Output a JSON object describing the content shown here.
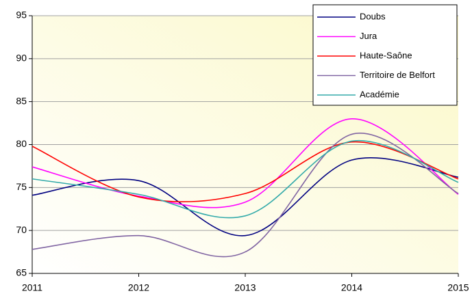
{
  "chart_data": {
    "type": "line",
    "x": [
      2011,
      2012,
      2013,
      2014,
      2015
    ],
    "xlim": [
      2011,
      2015
    ],
    "xticks": [
      2011,
      2012,
      2013,
      2014,
      2015
    ],
    "ylim": [
      65,
      95
    ],
    "yticks": [
      65,
      70,
      75,
      80,
      85,
      90,
      95
    ],
    "grid": true,
    "legend": "top-right",
    "series": [
      {
        "name": "Doubs",
        "color": "#000080",
        "values": [
          74.1,
          75.8,
          69.4,
          78.2,
          76.2
        ]
      },
      {
        "name": "Jura",
        "color": "#ff00ff",
        "values": [
          77.4,
          74.0,
          73.3,
          83.0,
          74.2
        ]
      },
      {
        "name": "Haute-Saône",
        "color": "#ff0000",
        "values": [
          79.8,
          73.9,
          74.3,
          80.3,
          76.0
        ]
      },
      {
        "name": "Territoire de Belfort",
        "color": "#8064a2",
        "values": [
          67.8,
          69.4,
          67.5,
          81.2,
          74.3
        ]
      },
      {
        "name": "Académie",
        "color": "#33aaaa",
        "values": [
          76.0,
          74.2,
          71.7,
          80.4,
          75.6
        ]
      }
    ]
  }
}
